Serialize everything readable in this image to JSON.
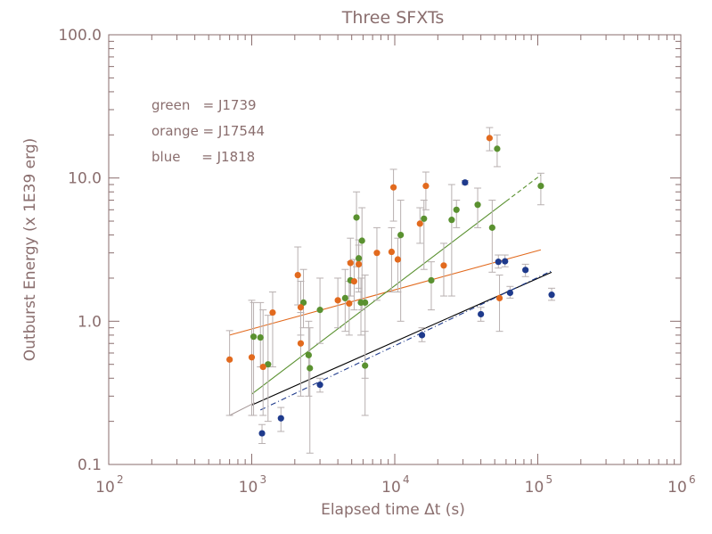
{
  "chart_data": {
    "type": "scatter",
    "title": "Three SFXTs",
    "xlabel": "Elapsed time Δt (s)",
    "ylabel": "Outburst Energy (x 1E39 erg)",
    "xscale": "log",
    "yscale": "log",
    "xlim": [
      100,
      1000000
    ],
    "ylim": [
      0.1,
      100
    ],
    "xticks": [
      {
        "value": 100,
        "base": "10",
        "exp": "2"
      },
      {
        "value": 1000,
        "base": "10",
        "exp": "3"
      },
      {
        "value": 10000,
        "base": "10",
        "exp": "4"
      },
      {
        "value": 100000,
        "base": "10",
        "exp": "5"
      },
      {
        "value": 1000000,
        "base": "10",
        "exp": "6"
      }
    ],
    "yticks": [
      {
        "value": 0.1,
        "label": "0.1"
      },
      {
        "value": 1,
        "label": "1.0"
      },
      {
        "value": 10,
        "label": "10.0"
      },
      {
        "value": 100,
        "label": "100.0"
      }
    ],
    "legend_position": "top-left",
    "legend": [
      {
        "name": "green",
        "text": "green   = J1739"
      },
      {
        "name": "orange",
        "text": "orange = J17544"
      },
      {
        "name": "blue",
        "text": "blue     = J1818"
      }
    ],
    "colors": {
      "axis": "#8a6e6e",
      "errbar": "#b8b0b0",
      "green": "#5a9130",
      "orange": "#e26a1e",
      "blue": "#1e3a8c",
      "black": "#000000"
    },
    "series": [
      {
        "name": "green",
        "color": "#5a9130",
        "points": [
          {
            "x": 1030,
            "y": 0.78,
            "lo": 0.22,
            "hi": 1.35
          },
          {
            "x": 1150,
            "y": 0.77,
            "lo": 0.48,
            "hi": 1.35
          },
          {
            "x": 1300,
            "y": 0.5,
            "lo": 0.2,
            "hi": 1.1
          },
          {
            "x": 2300,
            "y": 1.35,
            "lo": 0.9,
            "hi": 2.3
          },
          {
            "x": 2500,
            "y": 0.58,
            "lo": 0.3,
            "hi": 1.0
          },
          {
            "x": 2550,
            "y": 0.47,
            "lo": 0.12,
            "hi": 0.9
          },
          {
            "x": 3000,
            "y": 1.2,
            "lo": 0.7,
            "hi": 2.0
          },
          {
            "x": 4500,
            "y": 1.45,
            "lo": 0.85,
            "hi": 2.3
          },
          {
            "x": 4900,
            "y": 1.93,
            "lo": 1.5,
            "hi": 2.6
          },
          {
            "x": 5400,
            "y": 5.3,
            "lo": 2.4,
            "hi": 8.0
          },
          {
            "x": 5600,
            "y": 2.75,
            "lo": 1.7,
            "hi": 3.7
          },
          {
            "x": 5800,
            "y": 1.35,
            "lo": 0.8,
            "hi": 2.0
          },
          {
            "x": 5900,
            "y": 3.65,
            "lo": 1.2,
            "hi": 6.2
          },
          {
            "x": 6200,
            "y": 1.35,
            "lo": 0.4,
            "hi": 2.1
          },
          {
            "x": 6200,
            "y": 0.49,
            "lo": 0.22,
            "hi": 0.85
          },
          {
            "x": 11000,
            "y": 4.0,
            "lo": 1.0,
            "hi": 7.0
          },
          {
            "x": 16000,
            "y": 5.2,
            "lo": 2.3,
            "hi": 7.0
          },
          {
            "x": 18000,
            "y": 1.93,
            "lo": 1.2,
            "hi": 2.6
          },
          {
            "x": 25000,
            "y": 5.1,
            "lo": 1.5,
            "hi": 9.0
          },
          {
            "x": 27000,
            "y": 6.0,
            "lo": 4.5,
            "hi": 7.0
          },
          {
            "x": 38000,
            "y": 6.5,
            "lo": 4.5,
            "hi": 8.5
          },
          {
            "x": 48000,
            "y": 4.5,
            "lo": 2.2,
            "hi": 7.0
          },
          {
            "x": 52000,
            "y": 16.0,
            "lo": 12.0,
            "hi": 20.0
          },
          {
            "x": 105000,
            "y": 8.8,
            "lo": 6.5,
            "hi": 10.8
          }
        ]
      },
      {
        "name": "orange",
        "color": "#e26a1e",
        "points": [
          {
            "x": 700,
            "y": 0.54,
            "lo": 0.22,
            "hi": 0.86
          },
          {
            "x": 1000,
            "y": 0.56,
            "lo": 0.22,
            "hi": 1.4
          },
          {
            "x": 1200,
            "y": 0.48,
            "lo": 0.22,
            "hi": 1.2
          },
          {
            "x": 1400,
            "y": 1.15,
            "lo": 0.48,
            "hi": 1.6
          },
          {
            "x": 2100,
            "y": 2.1,
            "lo": 1.3,
            "hi": 3.3
          },
          {
            "x": 2200,
            "y": 0.7,
            "lo": 0.3,
            "hi": 1.15
          },
          {
            "x": 2200,
            "y": 1.25,
            "lo": 0.8,
            "hi": 1.9
          },
          {
            "x": 4000,
            "y": 1.4,
            "lo": 0.9,
            "hi": 2.0
          },
          {
            "x": 4800,
            "y": 1.33,
            "lo": 0.8,
            "hi": 1.9
          },
          {
            "x": 4900,
            "y": 2.55,
            "lo": 1.5,
            "hi": 3.8
          },
          {
            "x": 5200,
            "y": 1.9,
            "lo": 1.2,
            "hi": 2.7
          },
          {
            "x": 5600,
            "y": 2.5,
            "lo": 1.6,
            "hi": 3.4
          },
          {
            "x": 7500,
            "y": 3.0,
            "lo": 1.4,
            "hi": 4.5
          },
          {
            "x": 9500,
            "y": 3.05,
            "lo": 1.6,
            "hi": 4.5
          },
          {
            "x": 9800,
            "y": 8.6,
            "lo": 5.0,
            "hi": 11.5
          },
          {
            "x": 10500,
            "y": 2.7,
            "lo": 1.6,
            "hi": 3.8
          },
          {
            "x": 15000,
            "y": 4.8,
            "lo": 3.5,
            "hi": 6.2
          },
          {
            "x": 16500,
            "y": 8.8,
            "lo": 6.0,
            "hi": 11.0
          },
          {
            "x": 22000,
            "y": 2.45,
            "lo": 1.5,
            "hi": 3.5
          },
          {
            "x": 46000,
            "y": 19.0,
            "lo": 15.5,
            "hi": 22.5
          },
          {
            "x": 54000,
            "y": 1.45,
            "lo": 0.85,
            "hi": 2.1
          }
        ]
      },
      {
        "name": "blue",
        "color": "#1e3a8c",
        "points": [
          {
            "x": 1180,
            "y": 0.165,
            "lo": 0.14,
            "hi": 0.19
          },
          {
            "x": 1600,
            "y": 0.21,
            "lo": 0.17,
            "hi": 0.25
          },
          {
            "x": 3000,
            "y": 0.36,
            "lo": 0.32,
            "hi": 0.4
          },
          {
            "x": 15500,
            "y": 0.8,
            "lo": 0.72,
            "hi": 0.9
          },
          {
            "x": 31000,
            "y": 9.3,
            "lo": 9.0,
            "hi": 9.6
          },
          {
            "x": 40000,
            "y": 1.12,
            "lo": 1.0,
            "hi": 1.25
          },
          {
            "x": 53000,
            "y": 2.6,
            "lo": 2.35,
            "hi": 2.9
          },
          {
            "x": 59000,
            "y": 2.62,
            "lo": 2.4,
            "hi": 2.9
          },
          {
            "x": 64000,
            "y": 1.58,
            "lo": 1.45,
            "hi": 1.75
          },
          {
            "x": 82000,
            "y": 2.28,
            "lo": 2.05,
            "hi": 2.5
          },
          {
            "x": 125000,
            "y": 1.53,
            "lo": 1.4,
            "hi": 1.7
          }
        ]
      }
    ],
    "fits": [
      {
        "name": "orange",
        "color": "#e26a1e",
        "x": [
          700,
          105000
        ],
        "y": [
          0.8,
          3.15
        ]
      },
      {
        "name": "green",
        "color": "#5a9130",
        "x": [
          1000,
          105000
        ],
        "y": [
          0.31,
          10.5
        ],
        "dashed_from": 60000
      },
      {
        "name": "black",
        "color": "#000000",
        "x": [
          1000,
          125000
        ],
        "y": [
          0.26,
          2.2
        ]
      },
      {
        "name": "blue",
        "color": "#1e3a8c",
        "x": [
          1150,
          125000
        ],
        "y": [
          0.24,
          2.25
        ],
        "dashed": true
      },
      {
        "name": "gray",
        "color": "#a89a9a",
        "x": [
          700,
          1050
        ],
        "y": [
          0.22,
          0.27
        ]
      }
    ]
  }
}
